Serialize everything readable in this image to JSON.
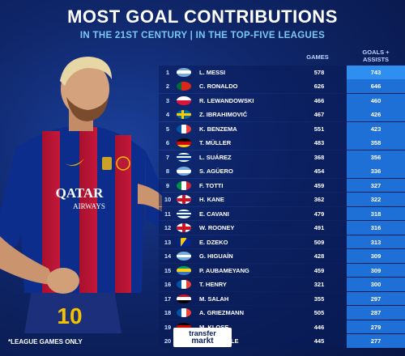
{
  "title": "MOST GOAL CONTRIBUTIONS",
  "subtitle": "IN THE 21ST CENTURY | IN THE TOP-FIVE LEAGUES",
  "headers": {
    "games": "GAMES",
    "goals_line1": "GOALS +",
    "goals_line2": "ASSISTS"
  },
  "rows": [
    {
      "rank": "1",
      "name": "L. MESSI",
      "games": "578",
      "ga": "743",
      "flag": "argentina"
    },
    {
      "rank": "2",
      "name": "C. RONALDO",
      "games": "626",
      "ga": "646",
      "flag": "portugal"
    },
    {
      "rank": "3",
      "name": "R. LEWANDOWSKI",
      "games": "466",
      "ga": "460",
      "flag": "poland"
    },
    {
      "rank": "4",
      "name": "Z. IBRAHIMOVIĆ",
      "games": "467",
      "ga": "426",
      "flag": "sweden"
    },
    {
      "rank": "5",
      "name": "K. BENZEMA",
      "games": "551",
      "ga": "423",
      "flag": "france"
    },
    {
      "rank": "6",
      "name": "T. MÜLLER",
      "games": "483",
      "ga": "358",
      "flag": "germany"
    },
    {
      "rank": "7",
      "name": "L. SUÁREZ",
      "games": "368",
      "ga": "356",
      "flag": "uruguay"
    },
    {
      "rank": "8",
      "name": "S. AGÜERO",
      "games": "454",
      "ga": "336",
      "flag": "argentina"
    },
    {
      "rank": "9",
      "name": "F. TOTTI",
      "games": "459",
      "ga": "327",
      "flag": "italy"
    },
    {
      "rank": "10",
      "name": "H. KANE",
      "games": "362",
      "ga": "322",
      "flag": "england"
    },
    {
      "rank": "11",
      "name": "E. CAVANI",
      "games": "479",
      "ga": "318",
      "flag": "uruguay"
    },
    {
      "rank": "12",
      "name": "W. ROONEY",
      "games": "491",
      "ga": "316",
      "flag": "england"
    },
    {
      "rank": "13",
      "name": "E. DZEKO",
      "games": "509",
      "ga": "313",
      "flag": "bosnia"
    },
    {
      "rank": "14",
      "name": "G. HIGUAÍN",
      "games": "428",
      "ga": "309",
      "flag": "argentina"
    },
    {
      "rank": "15",
      "name": "P. AUBAMEYANG",
      "games": "459",
      "ga": "309",
      "flag": "gabon"
    },
    {
      "rank": "16",
      "name": "T. HENRY",
      "games": "321",
      "ga": "300",
      "flag": "france"
    },
    {
      "rank": "17",
      "name": "M. SALAH",
      "games": "355",
      "ga": "297",
      "flag": "egypt"
    },
    {
      "rank": "18",
      "name": "A. GRIEZMANN",
      "games": "505",
      "ga": "287",
      "flag": "france"
    },
    {
      "rank": "19",
      "name": "M. KLOSE",
      "games": "446",
      "ga": "279",
      "flag": "germany"
    },
    {
      "rank": "20",
      "name": "A. DI NATALE",
      "games": "445",
      "ga": "277",
      "flag": "italy"
    }
  ],
  "footnote": "*LEAGUE GAMES ONLY",
  "logo": {
    "line1": "transfer",
    "line2": "markt"
  },
  "jersey": {
    "sponsor_line1": "QATAR",
    "sponsor_line2": "AIRWAYS",
    "number": "10"
  },
  "colors": {
    "accent": "#79c9f1",
    "ga_cell": "#1e6fd6",
    "ga_cell_top": "#2f8ff0"
  }
}
